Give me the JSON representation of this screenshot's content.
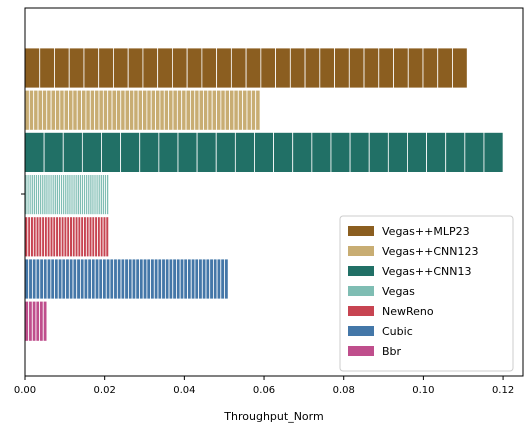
{
  "chart_data": {
    "type": "bar",
    "orientation": "horizontal",
    "title": "",
    "xlabel": "Throughput_Norm",
    "ylabel": "",
    "xlim": [
      0,
      0.125
    ],
    "xticks": [
      "0.00",
      "0.02",
      "0.04",
      "0.06",
      "0.08",
      "0.10",
      "0.12"
    ],
    "grid": false,
    "legend_position": "lower-right",
    "series": [
      {
        "name": "Vegas++MLP23",
        "value": 0.111,
        "color": "#8B5E20",
        "stripe_count": 30
      },
      {
        "name": "Vegas++CNN123",
        "value": 0.059,
        "color": "#C8AD73",
        "stripe_count": 54
      },
      {
        "name": "Vegas++CNN13",
        "value": 0.12,
        "color": "#217066",
        "stripe_count": 25
      },
      {
        "name": "Vegas",
        "value": 0.021,
        "color": "#7FBDB3",
        "stripe_count": 40
      },
      {
        "name": "NewReno",
        "value": 0.021,
        "color": "#C74451",
        "stripe_count": 30
      },
      {
        "name": "Cubic",
        "value": 0.051,
        "color": "#4477A8",
        "stripe_count": 55
      },
      {
        "name": "Bbr",
        "value": 0.0055,
        "color": "#BF4E8C",
        "stripe_count": 6
      }
    ]
  }
}
